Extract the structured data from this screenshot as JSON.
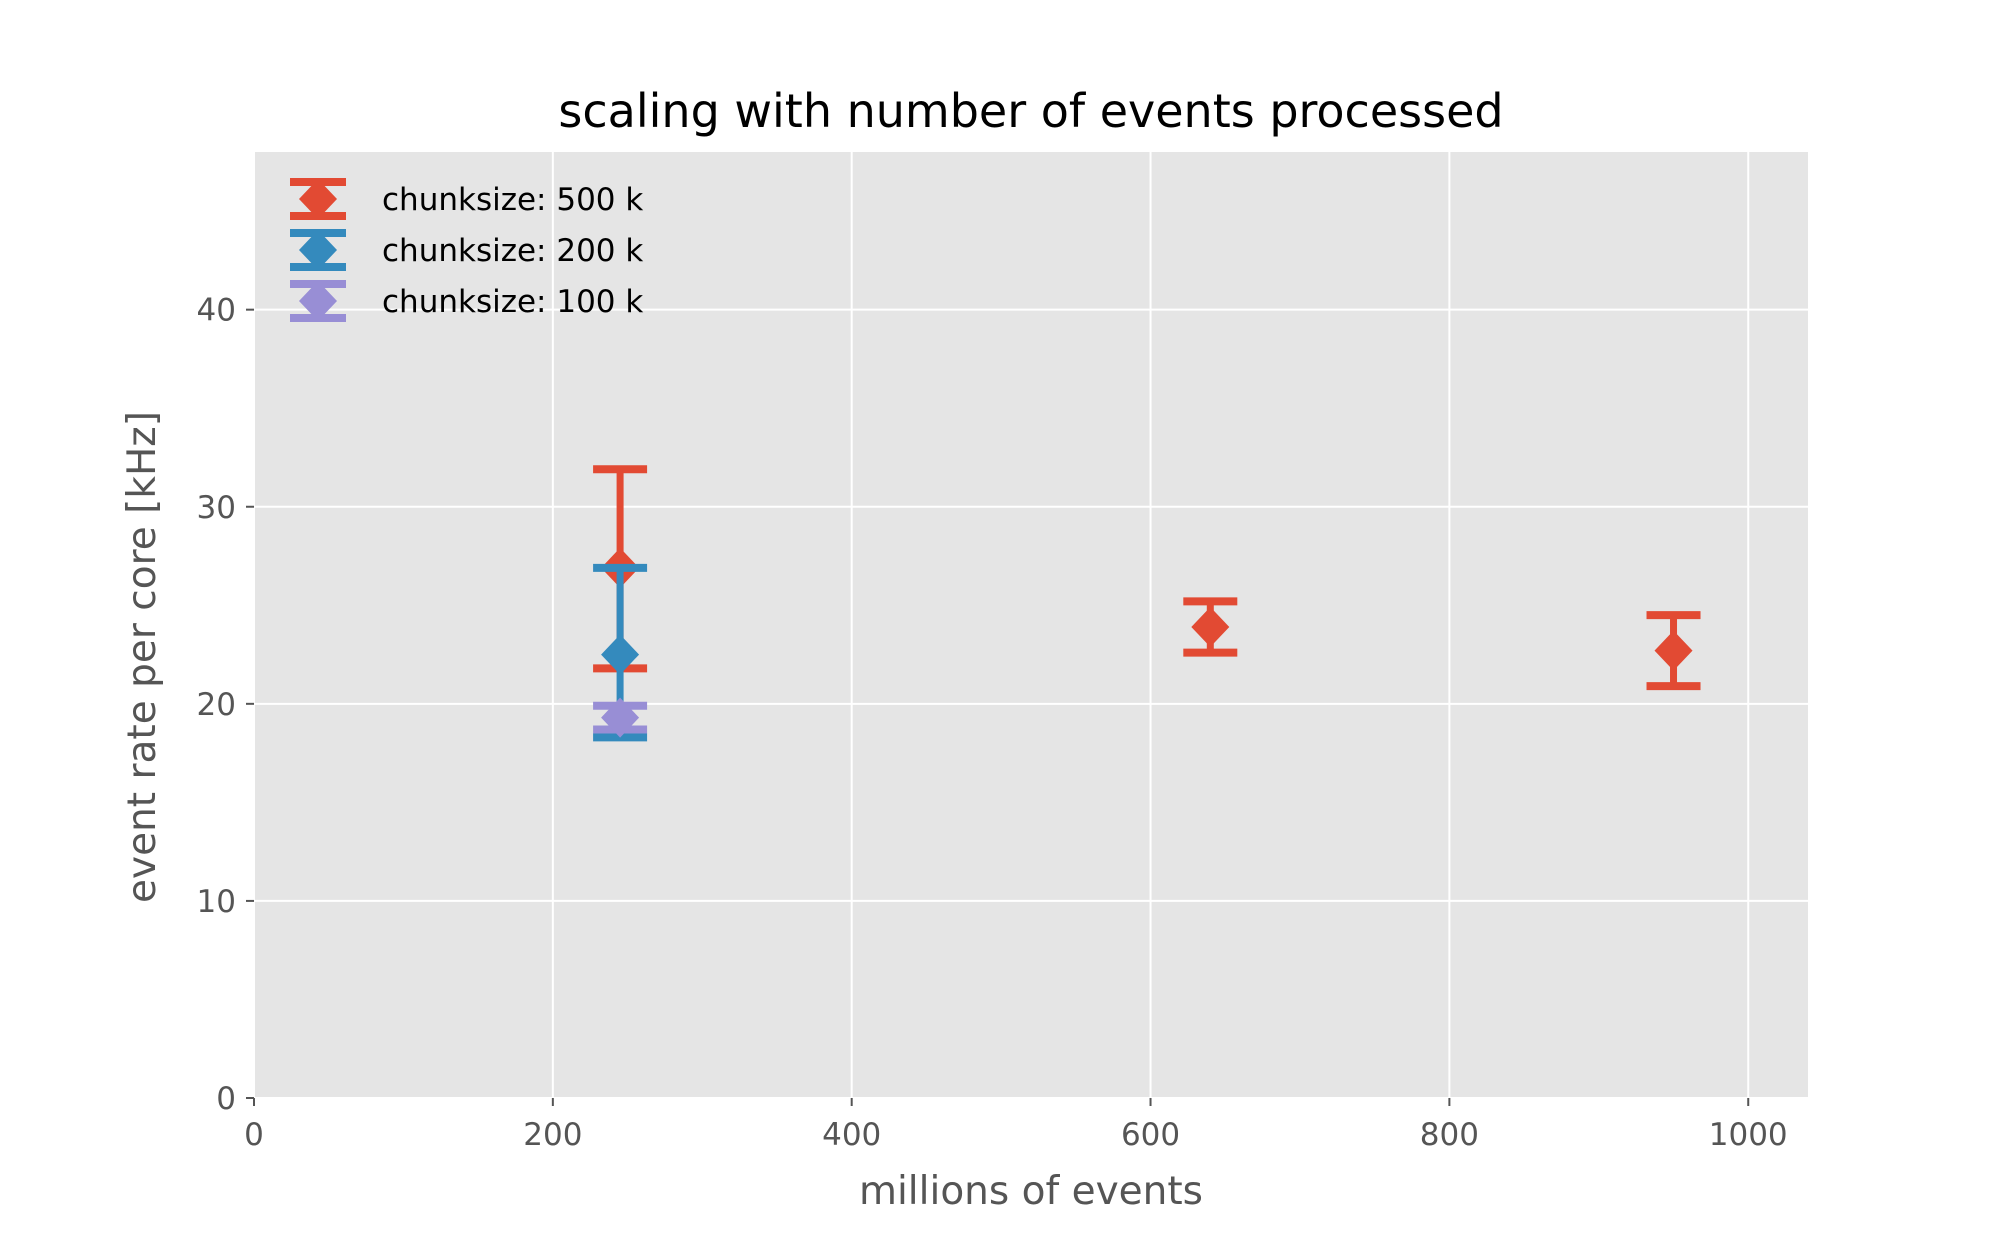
{
  "chart_data": {
    "type": "scatter",
    "title": "scaling with number of events processed",
    "xlabel": "millions of events",
    "ylabel": "event rate per core [kHz]",
    "xlim": [
      0,
      1040
    ],
    "ylim": [
      0,
      48
    ],
    "xticks": [
      0,
      200,
      400,
      600,
      800,
      1000
    ],
    "yticks": [
      0,
      10,
      20,
      30,
      40
    ],
    "grid": true,
    "legend_position": "top-left",
    "series": [
      {
        "name": "chunksize: 500 k",
        "color": "#E24A33",
        "marker": "diamond",
        "points": [
          {
            "x": 245,
            "y": 26.9,
            "yerr_low": 21.8,
            "yerr_high": 31.9
          },
          {
            "x": 640,
            "y": 23.9,
            "yerr_low": 22.6,
            "yerr_high": 25.2
          },
          {
            "x": 950,
            "y": 22.7,
            "yerr_low": 20.9,
            "yerr_high": 24.5
          }
        ]
      },
      {
        "name": "chunksize: 200 k",
        "color": "#348ABD",
        "marker": "diamond",
        "points": [
          {
            "x": 245,
            "y": 22.5,
            "yerr_low": 18.3,
            "yerr_high": 26.9
          }
        ]
      },
      {
        "name": "chunksize: 100 k",
        "color": "#988ED5",
        "marker": "diamond",
        "points": [
          {
            "x": 245,
            "y": 19.3,
            "yerr_low": 18.7,
            "yerr_high": 19.9
          }
        ]
      }
    ]
  }
}
